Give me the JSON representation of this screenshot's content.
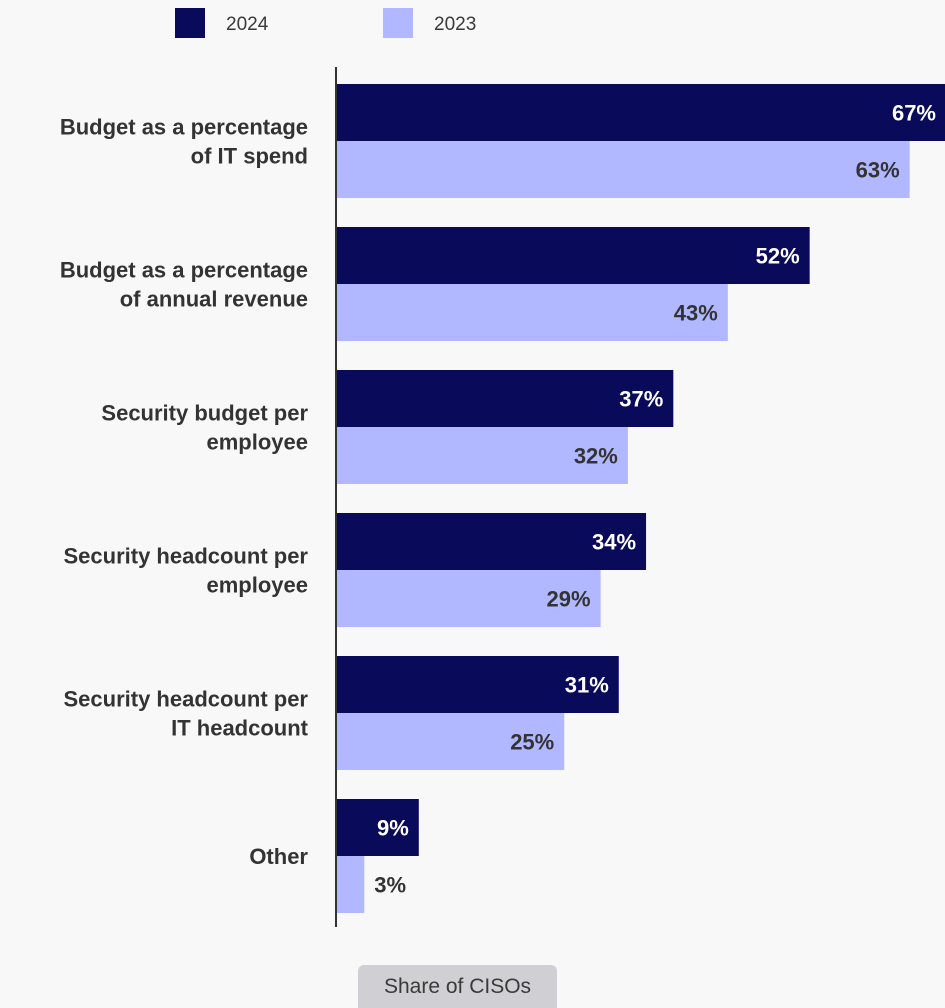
{
  "chart_data": {
    "type": "bar",
    "orientation": "horizontal",
    "categories": [
      [
        "Budget as a percentage",
        "of IT spend"
      ],
      [
        "Budget as a percentage",
        "of annual revenue"
      ],
      [
        "Security budget per",
        "employee"
      ],
      [
        "Security headcount per",
        "employee"
      ],
      [
        "Security headcount per",
        "IT headcount"
      ],
      [
        "Other"
      ]
    ],
    "series": [
      {
        "name": "2024",
        "color": "#0a0a5a",
        "label_color": "#ffffff",
        "values": [
          67,
          52,
          37,
          34,
          31,
          9
        ]
      },
      {
        "name": "2023",
        "color": "#b1b8ff",
        "label_color": "#333333",
        "values": [
          63,
          43,
          32,
          29,
          25,
          3
        ]
      }
    ],
    "value_suffix": "%",
    "xlim": [
      0,
      67
    ],
    "xlabel": "Share of CISOs",
    "legend_position": "top-left",
    "grid": false
  }
}
